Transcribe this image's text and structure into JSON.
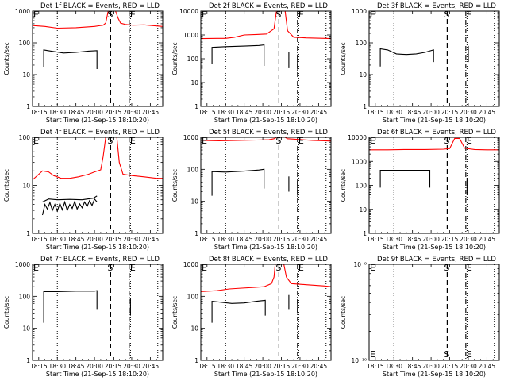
{
  "figure": {
    "common": {
      "ylabel": "Counts/sec",
      "xlabel": "Start Time (21-Sep-15 18:10:20)",
      "xtick_labels": [
        "18:15",
        "18:30",
        "18:45",
        "20:00",
        "20:15",
        "20:30",
        "20:45"
      ],
      "xtick_values": [
        0,
        15,
        30,
        45,
        60,
        75,
        90
      ],
      "x_range": [
        -5,
        100
      ],
      "dotted_lines_x": [
        15,
        74,
        96
      ],
      "dashed_line_x": 58,
      "dash_dot_line_x": 73,
      "marker_S": "S",
      "marker_E": "E",
      "colors": {
        "events": "#000000",
        "lld": "#ff0000",
        "axis": "#000000"
      }
    }
  },
  "chart_data": [
    {
      "type": "line",
      "title": "Det 1f BLACK = Events, RED = LLD",
      "ylim": [
        1,
        1000
      ],
      "yscale": "log",
      "ytick_labels": [
        "1",
        "10",
        "100",
        "1000"
      ],
      "ytick_values": [
        1,
        10,
        100,
        1000
      ],
      "series": [
        {
          "name": "LLD",
          "color": "red",
          "points": [
            [
              -5,
              350
            ],
            [
              5,
              330
            ],
            [
              15,
              290
            ],
            [
              30,
              300
            ],
            [
              45,
              330
            ],
            [
              52,
              360
            ],
            [
              54,
              420
            ],
            [
              56,
              1200
            ],
            [
              62,
              1200
            ],
            [
              64,
              600
            ],
            [
              66,
              420
            ],
            [
              70,
              380
            ],
            [
              76,
              360
            ],
            [
              85,
              370
            ],
            [
              95,
              340
            ],
            [
              100,
              330
            ]
          ]
        },
        {
          "name": "Events",
          "color": "black",
          "points": [
            [
              4,
              17
            ],
            [
              4,
              60
            ],
            [
              10,
              55
            ],
            [
              20,
              48
            ],
            [
              30,
              50
            ],
            [
              40,
              55
            ],
            [
              47,
              57
            ],
            [
              47,
              15
            ]
          ]
        },
        {
          "name": "Events",
          "color": "black",
          "points": [
            [
              73,
              7
            ],
            [
              73,
              30
            ]
          ]
        }
      ],
      "markers": {
        "S": 58,
        "E": 73
      }
    },
    {
      "type": "line",
      "title": "Det 2f BLACK = Events, RED = LLD",
      "ylim": [
        1,
        10000
      ],
      "yscale": "log",
      "ytick_labels": [
        "1",
        "10",
        "100",
        "1000",
        "10000"
      ],
      "ytick_values": [
        1,
        10,
        100,
        1000,
        10000
      ],
      "series": [
        {
          "name": "LLD",
          "color": "red",
          "points": [
            [
              -5,
              700
            ],
            [
              8,
              720
            ],
            [
              15,
              720
            ],
            [
              22,
              800
            ],
            [
              30,
              1000
            ],
            [
              40,
              1050
            ],
            [
              48,
              1100
            ],
            [
              54,
              1800
            ],
            [
              56,
              12000
            ],
            [
              63,
              12000
            ],
            [
              65,
              1500
            ],
            [
              70,
              800
            ],
            [
              80,
              750
            ],
            [
              95,
              720
            ],
            [
              100,
              700
            ]
          ]
        },
        {
          "name": "Events",
          "color": "black",
          "points": [
            [
              4,
              60
            ],
            [
              4,
              300
            ],
            [
              15,
              320
            ],
            [
              30,
              340
            ],
            [
              42,
              360
            ],
            [
              46,
              380
            ],
            [
              46,
              50
            ]
          ]
        },
        {
          "name": "Events",
          "color": "black",
          "points": [
            [
              66,
              40
            ],
            [
              66,
              200
            ]
          ]
        },
        {
          "name": "Events",
          "color": "black",
          "points": [
            [
              73,
              35
            ],
            [
              73,
              150
            ]
          ]
        }
      ],
      "markers": {
        "S": 58,
        "E": 73
      }
    },
    {
      "type": "line",
      "title": "Det 3f BLACK = Events, RED = LLD",
      "ylim": [
        1,
        1000
      ],
      "yscale": "log",
      "ytick_labels": [
        "1",
        "10",
        "100",
        "1000"
      ],
      "ytick_values": [
        1,
        10,
        100,
        1000
      ],
      "series": [
        {
          "name": "Events",
          "color": "black",
          "points": [
            [
              4,
              18
            ],
            [
              4,
              65
            ],
            [
              10,
              60
            ],
            [
              17,
              45
            ],
            [
              25,
              43
            ],
            [
              33,
              45
            ],
            [
              40,
              50
            ],
            [
              47,
              60
            ],
            [
              47,
              25
            ]
          ]
        },
        {
          "name": "Events",
          "color": "black",
          "points": [
            [
              75,
              25
            ],
            [
              75,
              80
            ]
          ]
        }
      ],
      "markers": {
        "S": 58,
        "E": 73
      }
    },
    {
      "type": "line",
      "title": "Det 4f BLACK = Events, RED = LLD",
      "ylim": [
        1,
        100
      ],
      "yscale": "log",
      "ytick_labels": [
        "1",
        "10",
        "100"
      ],
      "ytick_values": [
        1,
        10,
        100
      ],
      "series": [
        {
          "name": "LLD",
          "color": "red",
          "points": [
            [
              -5,
              13
            ],
            [
              0,
              17
            ],
            [
              3,
              20
            ],
            [
              8,
              19
            ],
            [
              12,
              16
            ],
            [
              18,
              14
            ],
            [
              25,
              14
            ],
            [
              32,
              15
            ],
            [
              40,
              17
            ],
            [
              45,
              19
            ],
            [
              50,
              21
            ],
            [
              52,
              40
            ],
            [
              54,
              110
            ],
            [
              63,
              110
            ],
            [
              65,
              30
            ],
            [
              68,
              17
            ],
            [
              75,
              16
            ],
            [
              85,
              15
            ],
            [
              95,
              14
            ],
            [
              100,
              14
            ]
          ]
        },
        {
          "name": "Events",
          "color": "black",
          "points": [
            [
              3,
              2.4
            ],
            [
              5,
              4
            ],
            [
              7,
              3.2
            ],
            [
              9,
              4.4
            ],
            [
              11,
              3
            ],
            [
              13,
              4
            ],
            [
              15,
              2.9
            ],
            [
              17,
              4.2
            ],
            [
              19,
              3.1
            ],
            [
              21,
              4.5
            ],
            [
              23,
              3
            ],
            [
              25,
              4
            ],
            [
              27,
              3.3
            ],
            [
              29,
              4.6
            ],
            [
              31,
              3.2
            ],
            [
              33,
              4.1
            ],
            [
              35,
              3.4
            ],
            [
              37,
              4.5
            ],
            [
              39,
              3.6
            ],
            [
              41,
              4.8
            ],
            [
              43,
              3.8
            ],
            [
              45,
              5.2
            ],
            [
              47,
              4.5
            ]
          ]
        },
        {
          "name": "Events",
          "color": "black",
          "points": [
            [
              3,
              4.5
            ],
            [
              8,
              5.2
            ],
            [
              15,
              5
            ],
            [
              25,
              5.1
            ],
            [
              35,
              5
            ],
            [
              44,
              5.4
            ],
            [
              47,
              6
            ]
          ]
        }
      ],
      "markers": {
        "S": 58,
        "E": 73
      }
    },
    {
      "type": "line",
      "title": "Det 5f BLACK = Events, RED = LLD",
      "ylim": [
        1,
        1000
      ],
      "yscale": "log",
      "ytick_labels": [
        "1",
        "10",
        "100",
        "1000"
      ],
      "ytick_values": [
        1,
        10,
        100,
        1000
      ],
      "series": [
        {
          "name": "LLD",
          "color": "red",
          "points": [
            [
              -5,
              800
            ],
            [
              10,
              780
            ],
            [
              25,
              800
            ],
            [
              40,
              820
            ],
            [
              50,
              840
            ],
            [
              54,
              900
            ],
            [
              56,
              1200
            ],
            [
              63,
              1200
            ],
            [
              65,
              900
            ],
            [
              75,
              850
            ],
            [
              85,
              800
            ],
            [
              95,
              780
            ],
            [
              100,
              760
            ]
          ]
        },
        {
          "name": "Events",
          "color": "black",
          "points": [
            [
              4,
              15
            ],
            [
              4,
              85
            ],
            [
              15,
              82
            ],
            [
              30,
              88
            ],
            [
              42,
              95
            ],
            [
              46,
              100
            ],
            [
              46,
              25
            ]
          ]
        },
        {
          "name": "Events",
          "color": "black",
          "points": [
            [
              66,
              20
            ],
            [
              66,
              60
            ]
          ]
        },
        {
          "name": "Events",
          "color": "black",
          "points": [
            [
              73,
              15
            ],
            [
              73,
              50
            ]
          ]
        }
      ],
      "markers": {
        "S": 58,
        "E": 73
      }
    },
    {
      "type": "line",
      "title": "Det 6f BLACK = Events, RED = LLD",
      "ylim": [
        1,
        10000
      ],
      "yscale": "log",
      "ytick_labels": [
        "1",
        "10",
        "100",
        "1000",
        "10000"
      ],
      "ytick_values": [
        1,
        10,
        100,
        1000,
        10000
      ],
      "series": [
        {
          "name": "LLD",
          "color": "red",
          "points": [
            [
              -5,
              3000
            ],
            [
              10,
              3000
            ],
            [
              25,
              3100
            ],
            [
              40,
              3100
            ],
            [
              55,
              3200
            ],
            [
              60,
              3400
            ],
            [
              64,
              9000
            ],
            [
              68,
              9000
            ],
            [
              72,
              3500
            ],
            [
              80,
              3100
            ],
            [
              90,
              3000
            ],
            [
              100,
              3000
            ]
          ]
        },
        {
          "name": "Events",
          "color": "black",
          "points": [
            [
              4,
              80
            ],
            [
              4,
              420
            ],
            [
              15,
              420
            ],
            [
              30,
              420
            ],
            [
              44,
              420
            ],
            [
              44,
              80
            ]
          ]
        },
        {
          "name": "Events",
          "color": "black",
          "points": [
            [
              74,
              40
            ],
            [
              74,
              200
            ]
          ]
        }
      ],
      "markers": {
        "S": 58,
        "E": 73
      }
    },
    {
      "type": "line",
      "title": "Det 7f BLACK = Events, RED = LLD",
      "ylim": [
        1,
        1000
      ],
      "yscale": "log",
      "ytick_labels": [
        "1",
        "10",
        "100",
        "1000"
      ],
      "ytick_values": [
        1,
        10,
        100,
        1000
      ],
      "series": [
        {
          "name": "Events",
          "color": "black",
          "points": [
            [
              4,
              15
            ],
            [
              4,
              140
            ],
            [
              15,
              140
            ],
            [
              30,
              145
            ],
            [
              45,
              145
            ],
            [
              47,
              150
            ],
            [
              47,
              40
            ]
          ]
        },
        {
          "name": "Events",
          "color": "black",
          "points": [
            [
              74,
              25
            ],
            [
              74,
              90
            ]
          ]
        }
      ],
      "markers": {
        "S": 58,
        "E": 73
      }
    },
    {
      "type": "line",
      "title": "Det 8f BLACK = Events, RED = LLD",
      "ylim": [
        1,
        1000
      ],
      "yscale": "log",
      "ytick_labels": [
        "1",
        "10",
        "100",
        "1000"
      ],
      "ytick_values": [
        1,
        10,
        100,
        1000
      ],
      "series": [
        {
          "name": "LLD",
          "color": "red",
          "points": [
            [
              -5,
              140
            ],
            [
              8,
              150
            ],
            [
              18,
              170
            ],
            [
              28,
              180
            ],
            [
              38,
              190
            ],
            [
              46,
              200
            ],
            [
              52,
              250
            ],
            [
              54,
              400
            ],
            [
              55,
              1200
            ],
            [
              62,
              1200
            ],
            [
              64,
              400
            ],
            [
              68,
              250
            ],
            [
              80,
              230
            ],
            [
              95,
              210
            ],
            [
              100,
              200
            ]
          ]
        },
        {
          "name": "Events",
          "color": "black",
          "points": [
            [
              4,
              15
            ],
            [
              4,
              70
            ],
            [
              12,
              65
            ],
            [
              20,
              60
            ],
            [
              30,
              62
            ],
            [
              40,
              70
            ],
            [
              47,
              75
            ],
            [
              47,
              25
            ]
          ]
        },
        {
          "name": "Events",
          "color": "black",
          "points": [
            [
              66,
              40
            ],
            [
              66,
              110
            ]
          ]
        },
        {
          "name": "Events",
          "color": "black",
          "points": [
            [
              73,
              30
            ],
            [
              73,
              80
            ]
          ]
        }
      ],
      "markers": {
        "S": 58,
        "E": 73
      }
    },
    {
      "type": "line",
      "title": "Det 9f BLACK = Events, RED = LLD",
      "ylim": [
        1e-10,
        1e-09
      ],
      "yscale": "log",
      "ytick_labels": [
        "10⁻¹⁰",
        "10⁻⁹"
      ],
      "ytick_values": [
        1e-10,
        1e-09
      ],
      "series": [],
      "markers": {
        "S": 58,
        "E": 73
      }
    }
  ]
}
